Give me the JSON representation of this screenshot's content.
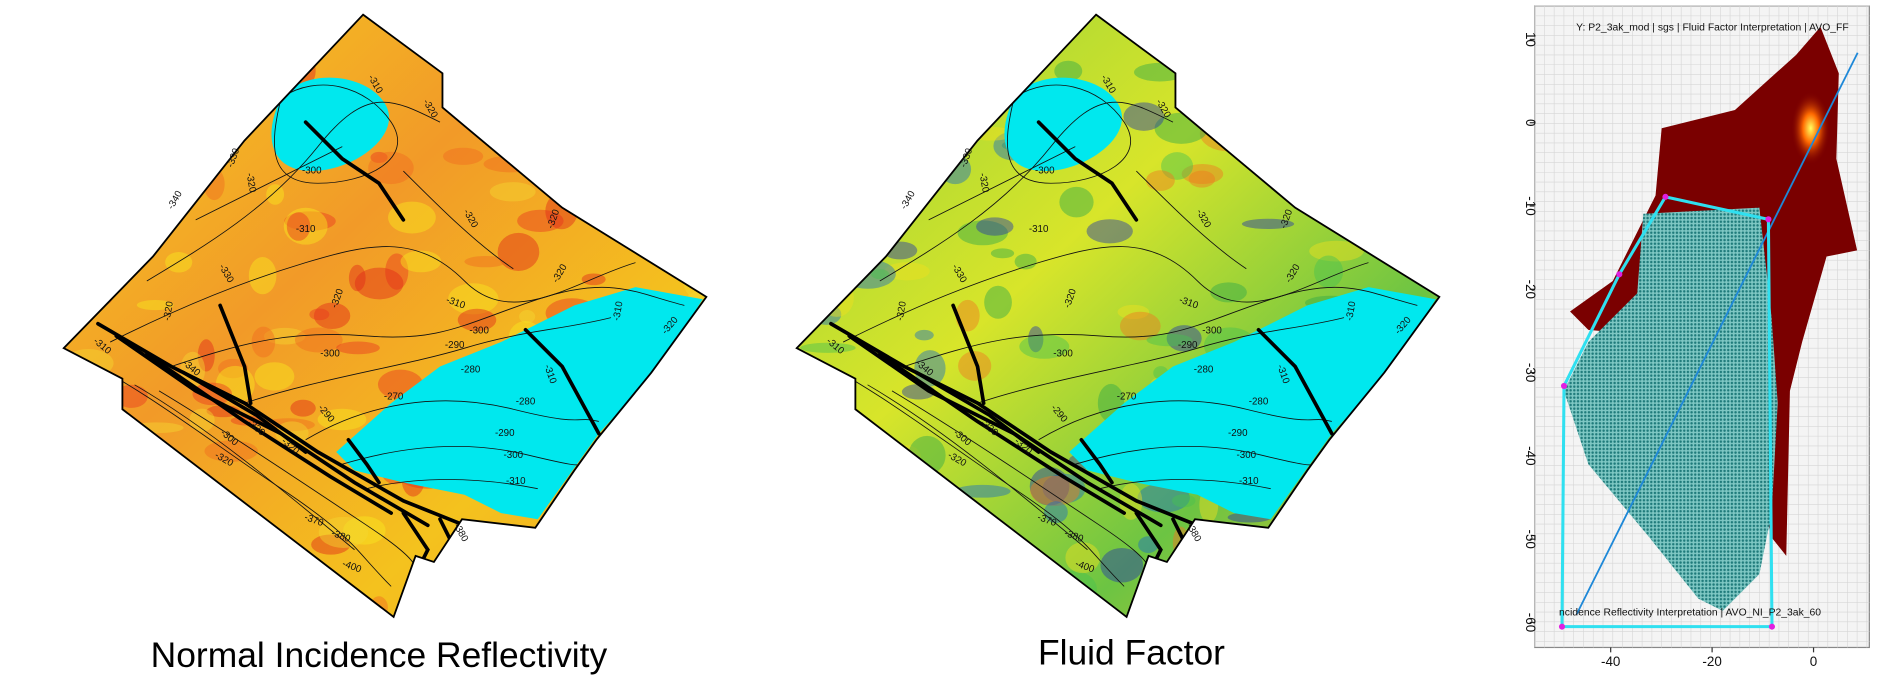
{
  "maps": [
    {
      "caption": "Normal Incidence Reflectivity",
      "contour_labels": [
        "-310",
        "-320",
        "-330",
        "-320",
        "-300",
        "-340",
        "-310",
        "-320",
        "-320",
        "-330",
        "-320",
        "-320",
        "-310",
        "-320",
        "-310",
        "-320",
        "-300",
        "-290",
        "-300",
        "-280",
        "-310",
        "-310",
        "-340",
        "-290",
        "-270",
        "-280",
        "-290",
        "-300",
        "-330",
        "-320",
        "-300",
        "-320",
        "-310",
        "-370",
        "-380",
        "-380",
        "-400"
      ]
    },
    {
      "caption": "Fluid Factor",
      "contour_labels": [
        "-310",
        "-320",
        "-330",
        "-320",
        "-300",
        "-340",
        "-310",
        "-320",
        "-320",
        "-330",
        "-320",
        "-320",
        "-310",
        "-320",
        "-310",
        "-320",
        "-300",
        "-290",
        "-300",
        "-280",
        "-310",
        "-310",
        "-340",
        "-290",
        "-270",
        "-280",
        "-290",
        "-300",
        "-330",
        "-320",
        "-300",
        "-320",
        "-310",
        "-370",
        "-380",
        "-380",
        "-400"
      ]
    }
  ],
  "crossplot": {
    "y_title": "Y: P2_3ak_mod | sgs | Fluid Factor Interpretation  | AVO_FF",
    "x_title": "ncidence Reflectivity Interpretation  | AVO_NI_P2_3ak_60",
    "xlim": [
      -55,
      11
    ],
    "ylim": [
      -63,
      14
    ],
    "xticks": [
      -40,
      -20,
      0
    ],
    "yticks": [
      10,
      0,
      -10,
      -20,
      -30,
      -40,
      -50,
      -60
    ],
    "polygon": {
      "x": [
        -29.2,
        -8.9,
        -8.2,
        -49.6,
        -49.2,
        -38.3
      ],
      "y": [
        -8.9,
        -11.6,
        -60.5,
        -60.5,
        -31.6,
        -18.2
      ]
    },
    "trend_line": {
      "x": [
        -46.7,
        8.7
      ],
      "y": [
        -59,
        8.4
      ]
    }
  }
}
